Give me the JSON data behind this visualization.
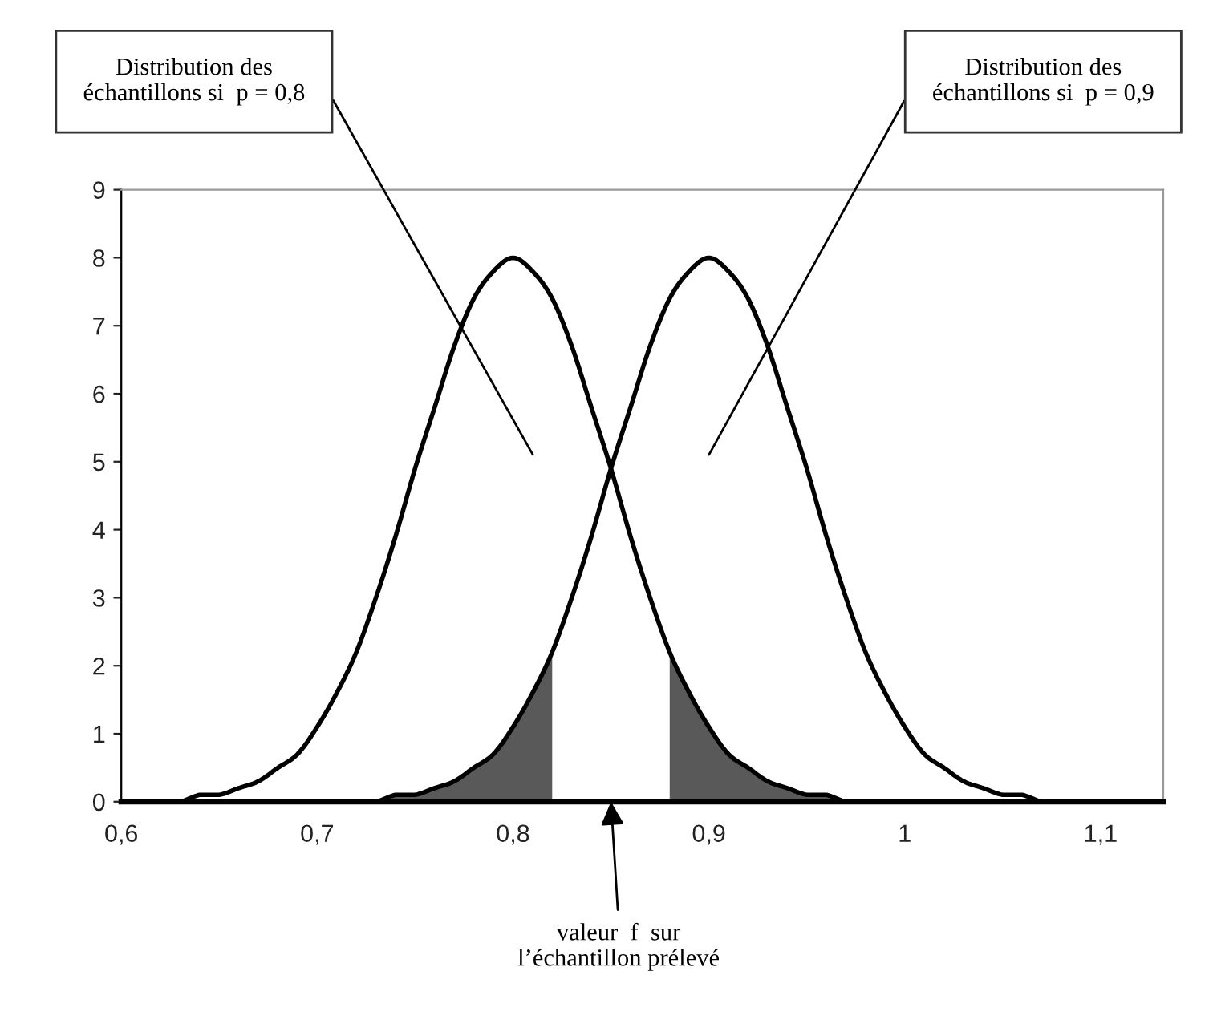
{
  "chart_data": {
    "type": "line",
    "xlim": [
      0.6,
      1.132
    ],
    "ylim": [
      0,
      9
    ],
    "xticks": [
      {
        "value": 0.6,
        "label": "0,6"
      },
      {
        "value": 0.7,
        "label": "0,7"
      },
      {
        "value": 0.8,
        "label": "0,8"
      },
      {
        "value": 0.9,
        "label": "0,9"
      },
      {
        "value": 1.0,
        "label": "1"
      },
      {
        "value": 1.1,
        "label": "1,1"
      }
    ],
    "yticks": [
      0,
      1,
      2,
      3,
      4,
      5,
      6,
      7,
      8,
      9
    ],
    "grid": false,
    "legend": false,
    "marker": "none",
    "line_style": "solid",
    "series": [
      {
        "color": "#000000",
        "x": [
          0.6,
          0.61,
          0.62,
          0.63,
          0.64,
          0.65,
          0.66,
          0.67,
          0.68,
          0.69,
          0.7,
          0.71,
          0.72,
          0.73,
          0.74,
          0.75,
          0.76,
          0.77,
          0.78,
          0.79,
          0.8,
          0.81,
          0.82,
          0.83,
          0.84,
          0.85,
          0.86,
          0.87,
          0.88,
          0.89,
          0.9,
          0.91,
          0.92,
          0.93,
          0.94,
          0.95,
          0.96,
          0.97,
          0.98,
          0.99,
          1.0
        ],
        "values": [
          0,
          0,
          0,
          0,
          0.1,
          0.1,
          0.2,
          0.3,
          0.5,
          0.7,
          1.1,
          1.6,
          2.2,
          3,
          3.9,
          4.9,
          5.8,
          6.7,
          7.4,
          7.8,
          8,
          7.8,
          7.4,
          6.7,
          5.8,
          4.9,
          3.9,
          3,
          2.2,
          1.6,
          1.1,
          0.7,
          0.5,
          0.3,
          0.2,
          0.1,
          0.1,
          0,
          0,
          0,
          0
        ]
      },
      {
        "color": "#000000",
        "x": [
          0.7,
          0.71,
          0.72,
          0.73,
          0.74,
          0.75,
          0.76,
          0.77,
          0.78,
          0.79,
          0.8,
          0.81,
          0.82,
          0.83,
          0.84,
          0.85,
          0.86,
          0.87,
          0.88,
          0.89,
          0.9,
          0.91,
          0.92,
          0.93,
          0.94,
          0.95,
          0.96,
          0.97,
          0.98,
          0.99,
          1.0,
          1.01,
          1.02,
          1.03,
          1.04,
          1.05,
          1.06,
          1.07,
          1.08,
          1.09,
          1.1
        ],
        "values": [
          0,
          0,
          0,
          0,
          0.1,
          0.1,
          0.2,
          0.3,
          0.5,
          0.7,
          1.1,
          1.6,
          2.2,
          3,
          3.9,
          4.9,
          5.8,
          6.7,
          7.4,
          7.8,
          8,
          7.8,
          7.4,
          6.7,
          5.8,
          4.9,
          3.9,
          3,
          2.2,
          1.6,
          1.1,
          0.7,
          0.5,
          0.3,
          0.2,
          0.1,
          0.1,
          0,
          0,
          0,
          0
        ]
      },
      {
        "type": "area",
        "color": "#595959",
        "x": [
          0.7,
          0.71,
          0.72,
          0.73,
          0.74,
          0.75,
          0.76,
          0.77,
          0.78,
          0.79,
          0.8,
          0.81,
          0.82
        ],
        "values": [
          0,
          0,
          0,
          0,
          0.1,
          0.1,
          0.2,
          0.3,
          0.5,
          0.7,
          1.1,
          1.6,
          2.2
        ]
      },
      {
        "type": "area",
        "color": "#595959",
        "x": [
          0.88,
          0.89,
          0.9,
          0.91,
          0.92,
          0.93,
          0.94,
          0.95,
          0.96,
          0.97,
          0.98,
          0.99,
          1.0
        ],
        "values": [
          2.2,
          1.6,
          1.1,
          0.7,
          0.5,
          0.3,
          0.2,
          0.1,
          0.1,
          0,
          0,
          0,
          0
        ]
      }
    ],
    "annotations": [
      "Distribution des\néchantillons si  p = 0,8",
      "Distribution des\néchantillons si  p = 0,9",
      "valeur  f  sur\nl’échantillon prélevé"
    ]
  }
}
